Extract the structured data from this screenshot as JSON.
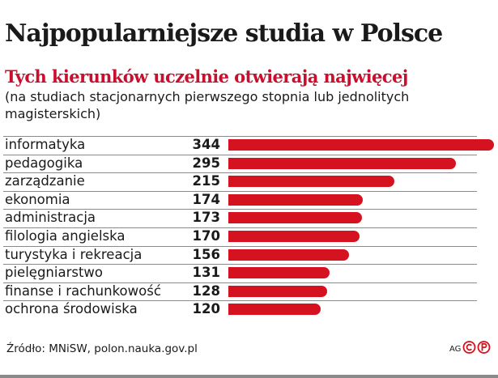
{
  "header": {
    "title": "Najpopularniejsze studia w Polsce",
    "subtitle": "Tych kierunków uczelnie otwierają najwięcej",
    "note": "(na studiach stacjonarnych pierwszego stopnia lub jednolitych magisterskich)"
  },
  "chart_data": {
    "type": "bar",
    "orientation": "horizontal",
    "title": "Najpopularniejsze studia w Polsce",
    "subtitle": "Tych kierunków uczelnie otwierają najwięcej",
    "categories": [
      "informatyka",
      "pedagogika",
      "zarządzanie",
      "ekonomia",
      "administracja",
      "filologia angielska",
      "turystyka i rekreacja",
      "pielęgniarstwo",
      "finanse i rachunkowość",
      "ochrona środowiska"
    ],
    "values": [
      344,
      295,
      215,
      174,
      173,
      170,
      156,
      131,
      128,
      120
    ],
    "xlim": [
      0,
      344
    ],
    "grid": false,
    "bar_color": "#d5121f"
  },
  "footer": {
    "source": "Źródło: MNiSW, polon.nauka.gov.pl",
    "author": "AG",
    "copyright_icon": "copyright-icon"
  },
  "colors": {
    "accent": "#c8102e",
    "bar": "#d5121f",
    "text": "#1a1a1a"
  }
}
